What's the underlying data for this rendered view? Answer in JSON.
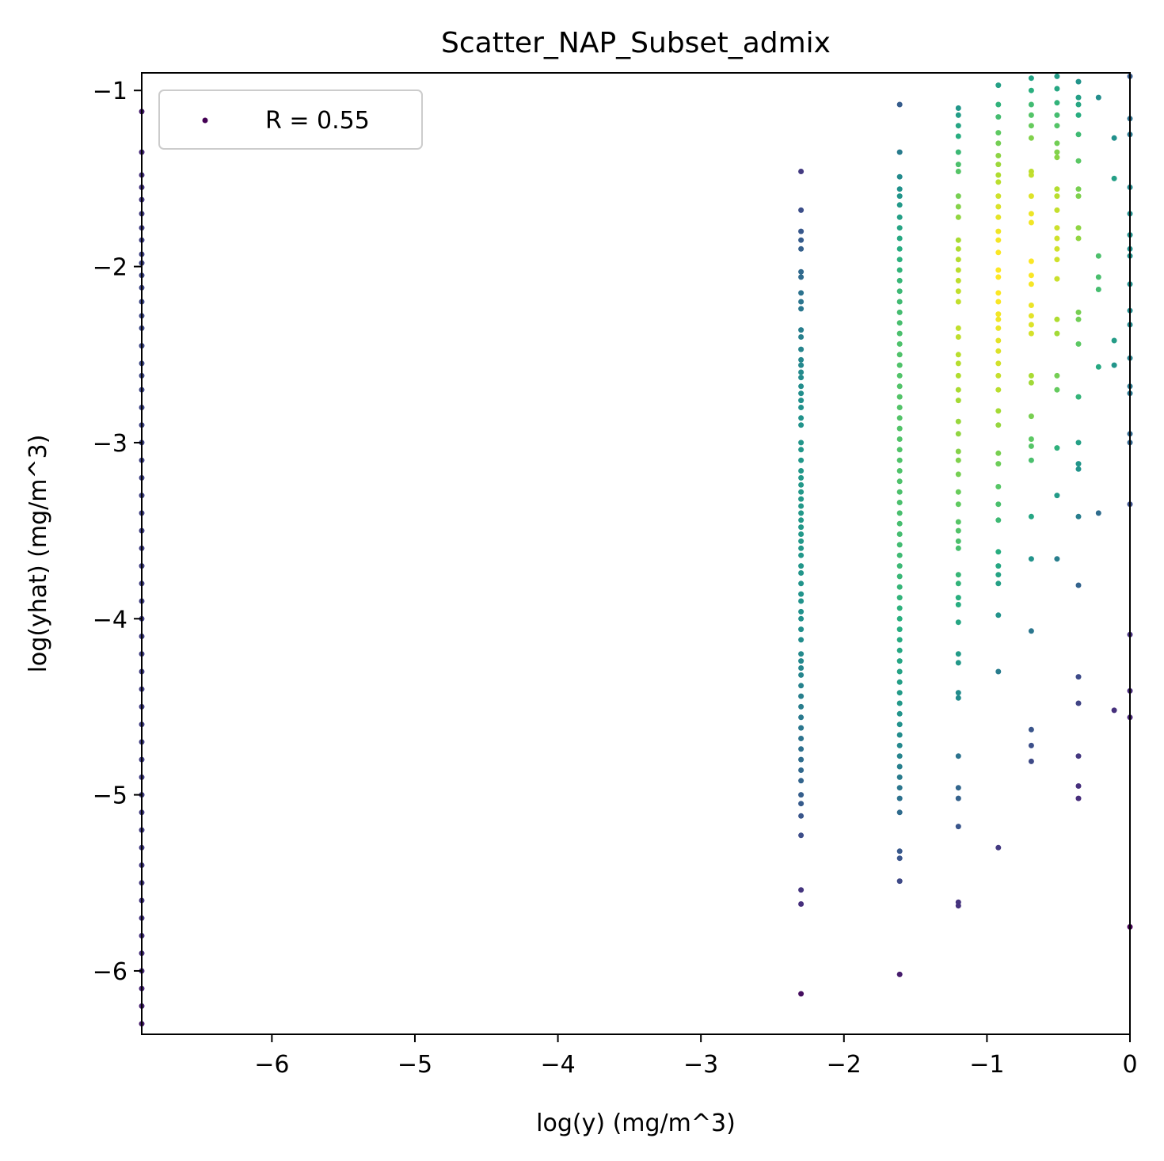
{
  "chart_data": {
    "type": "scatter",
    "title": "Scatter_NAP_Subset_admix",
    "xlabel": "log(y) (mg/m^3)",
    "ylabel": "log(yhat) (mg/m^3)",
    "xlim": [
      -6.91,
      0.0
    ],
    "ylim": [
      -6.36,
      -0.9
    ],
    "xticks": [
      -6,
      -5,
      -4,
      -3,
      -2,
      -1,
      0
    ],
    "yticks": [
      -6,
      -5,
      -4,
      -3,
      -2,
      -1
    ],
    "xtick_labels": [
      "−6",
      "−5",
      "−4",
      "−3",
      "−2",
      "−1",
      "0"
    ],
    "ytick_labels": [
      "−6",
      "−5",
      "−4",
      "−3",
      "−2",
      "−1"
    ],
    "grid": false,
    "legend": {
      "position": "top-left",
      "entries": [
        {
          "label": "R = 0.55",
          "color": "#440154"
        }
      ]
    },
    "colormap": "viridis",
    "columns": [
      {
        "x": -6.91,
        "y": [
          -1.12,
          -1.35,
          -1.48,
          -1.55,
          -1.62,
          -1.7,
          -1.78,
          -1.85,
          -1.93,
          -1.98,
          -2.05,
          -2.12,
          -2.2,
          -2.28,
          -2.35,
          -2.45,
          -2.55,
          -2.62,
          -2.7,
          -2.8,
          -2.9,
          -3.0,
          -3.1,
          -3.2,
          -3.3,
          -3.4,
          -3.5,
          -3.6,
          -3.7,
          -3.8,
          -3.9,
          -4.0,
          -4.1,
          -4.2,
          -4.3,
          -4.4,
          -4.5,
          -4.6,
          -4.7,
          -4.8,
          -4.9,
          -5.0,
          -5.1,
          -5.2,
          -5.3,
          -5.4,
          -5.5,
          -5.6,
          -5.7,
          -5.8,
          -5.9,
          -6.0,
          -6.1,
          -6.2,
          -6.3
        ]
      },
      {
        "x": -2.3,
        "y": [
          -1.46,
          -1.68,
          -1.8,
          -1.85,
          -1.9,
          -2.03,
          -2.06,
          -2.15,
          -2.2,
          -2.24,
          -2.36,
          -2.4,
          -2.47,
          -2.53,
          -2.56,
          -2.6,
          -2.63,
          -2.68,
          -2.72,
          -2.76,
          -2.8,
          -2.86,
          -2.9,
          -3.0,
          -3.04,
          -3.1,
          -3.16,
          -3.2,
          -3.24,
          -3.28,
          -3.32,
          -3.36,
          -3.4,
          -3.44,
          -3.48,
          -3.52,
          -3.56,
          -3.6,
          -3.64,
          -3.7,
          -3.74,
          -3.8,
          -3.86,
          -3.9,
          -3.96,
          -4.0,
          -4.06,
          -4.12,
          -4.2,
          -4.24,
          -4.28,
          -4.32,
          -4.38,
          -4.44,
          -4.5,
          -4.56,
          -4.62,
          -4.68,
          -4.74,
          -4.8,
          -4.86,
          -4.92,
          -5.0,
          -5.05,
          -5.12,
          -5.23,
          -5.54,
          -5.62,
          -6.13
        ]
      },
      {
        "x": -1.61,
        "y": [
          -1.08,
          -1.35,
          -1.49,
          -1.56,
          -1.6,
          -1.65,
          -1.72,
          -1.78,
          -1.84,
          -1.9,
          -1.96,
          -2.02,
          -2.08,
          -2.14,
          -2.2,
          -2.26,
          -2.32,
          -2.38,
          -2.44,
          -2.5,
          -2.56,
          -2.62,
          -2.68,
          -2.74,
          -2.8,
          -2.86,
          -2.92,
          -2.98,
          -3.04,
          -3.1,
          -3.16,
          -3.22,
          -3.28,
          -3.34,
          -3.4,
          -3.46,
          -3.52,
          -3.58,
          -3.64,
          -3.7,
          -3.76,
          -3.82,
          -3.88,
          -3.94,
          -4.0,
          -4.06,
          -4.12,
          -4.18,
          -4.24,
          -4.3,
          -4.36,
          -4.42,
          -4.48,
          -4.54,
          -4.6,
          -4.66,
          -4.72,
          -4.78,
          -4.84,
          -4.9,
          -4.96,
          -5.02,
          -5.1,
          -5.32,
          -5.36,
          -5.49,
          -6.02
        ]
      },
      {
        "x": -1.2,
        "y": [
          -1.1,
          -1.14,
          -1.2,
          -1.26,
          -1.35,
          -1.42,
          -1.46,
          -1.6,
          -1.66,
          -1.72,
          -1.85,
          -1.9,
          -1.96,
          -2.02,
          -2.08,
          -2.14,
          -2.2,
          -2.35,
          -2.4,
          -2.5,
          -2.55,
          -2.62,
          -2.7,
          -2.76,
          -2.88,
          -2.95,
          -3.05,
          -3.1,
          -3.18,
          -3.28,
          -3.35,
          -3.45,
          -3.5,
          -3.56,
          -3.6,
          -3.75,
          -3.8,
          -3.88,
          -3.92,
          -4.02,
          -4.2,
          -4.25,
          -4.42,
          -4.45,
          -4.78,
          -4.96,
          -5.02,
          -5.18,
          -5.61,
          -5.63
        ]
      },
      {
        "x": -0.92,
        "y": [
          -0.97,
          -1.08,
          -1.15,
          -1.24,
          -1.3,
          -1.37,
          -1.42,
          -1.48,
          -1.52,
          -1.6,
          -1.66,
          -1.72,
          -1.8,
          -1.85,
          -1.92,
          -2.02,
          -2.06,
          -2.15,
          -2.2,
          -2.27,
          -2.3,
          -2.35,
          -2.42,
          -2.48,
          -2.55,
          -2.62,
          -2.7,
          -2.82,
          -2.9,
          -3.06,
          -3.12,
          -3.25,
          -3.35,
          -3.44,
          -3.62,
          -3.7,
          -3.75,
          -3.8,
          -3.98,
          -4.3,
          -5.3
        ]
      },
      {
        "x": -0.69,
        "y": [
          -0.93,
          -1.0,
          -1.08,
          -1.14,
          -1.2,
          -1.27,
          -1.46,
          -1.48,
          -1.6,
          -1.7,
          -1.75,
          -1.97,
          -2.05,
          -2.1,
          -2.22,
          -2.28,
          -2.33,
          -2.38,
          -2.62,
          -2.66,
          -2.85,
          -2.98,
          -3.02,
          -3.1,
          -3.42,
          -3.66,
          -4.07,
          -4.63,
          -4.72,
          -4.81
        ]
      },
      {
        "x": -0.51,
        "y": [
          -0.92,
          -0.99,
          -1.07,
          -1.14,
          -1.2,
          -1.3,
          -1.35,
          -1.38,
          -1.56,
          -1.6,
          -1.68,
          -1.78,
          -1.84,
          -1.9,
          -1.96,
          -2.07,
          -2.3,
          -2.38,
          -2.62,
          -2.7,
          -3.03,
          -3.3,
          -3.66
        ]
      },
      {
        "x": -0.36,
        "y": [
          -0.95,
          -1.04,
          -1.08,
          -1.14,
          -1.25,
          -1.4,
          -1.56,
          -1.6,
          -1.78,
          -1.84,
          -2.26,
          -2.3,
          -2.44,
          -2.74,
          -3.0,
          -3.12,
          -3.15,
          -3.42,
          -3.81,
          -4.33,
          -4.48,
          -4.78,
          -4.95,
          -5.02
        ]
      },
      {
        "x": -0.22,
        "y": [
          -1.04,
          -1.94,
          -2.06,
          -2.13,
          -2.57,
          -3.4
        ]
      },
      {
        "x": -0.11,
        "y": [
          -1.27,
          -1.5,
          -2.42,
          -2.56,
          -4.52
        ]
      },
      {
        "x": 0.0,
        "y": [
          -0.92,
          -1.16,
          -1.25,
          -1.55,
          -1.7,
          -1.82,
          -1.9,
          -1.94,
          -2.1,
          -2.25,
          -2.33,
          -2.52,
          -2.68,
          -2.72,
          -2.95,
          -3.0,
          -3.35,
          -4.09,
          -4.41,
          -4.56,
          -5.75
        ]
      }
    ]
  }
}
